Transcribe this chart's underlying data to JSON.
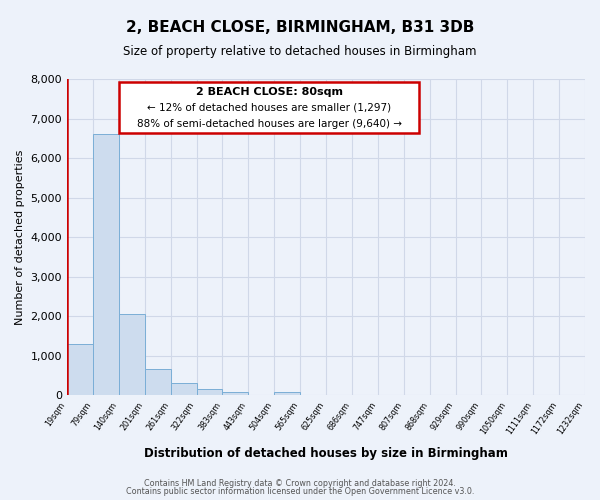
{
  "title": "2, BEACH CLOSE, BIRMINGHAM, B31 3DB",
  "subtitle": "Size of property relative to detached houses in Birmingham",
  "bar_values": [
    1300,
    6600,
    2050,
    650,
    300,
    150,
    80,
    0,
    80,
    0,
    0,
    0,
    0,
    0,
    0,
    0,
    0,
    0,
    0,
    0
  ],
  "bar_labels": [
    "19sqm",
    "79sqm",
    "140sqm",
    "201sqm",
    "261sqm",
    "322sqm",
    "383sqm",
    "443sqm",
    "504sqm",
    "565sqm",
    "625sqm",
    "686sqm",
    "747sqm",
    "807sqm",
    "868sqm",
    "929sqm",
    "990sqm",
    "1050sqm",
    "1111sqm",
    "1172sqm",
    "1232sqm"
  ],
  "bar_color": "#cddcee",
  "bar_edge_color": "#7aaed6",
  "highlight_line_color": "#cc0000",
  "ylabel": "Number of detached properties",
  "xlabel": "Distribution of detached houses by size in Birmingham",
  "ylim": [
    0,
    8000
  ],
  "yticks": [
    0,
    1000,
    2000,
    3000,
    4000,
    5000,
    6000,
    7000,
    8000
  ],
  "annotation_title": "2 BEACH CLOSE: 80sqm",
  "annotation_line1": "← 12% of detached houses are smaller (1,297)",
  "annotation_line2": "88% of semi-detached houses are larger (9,640) →",
  "annotation_box_color": "#cc0000",
  "footer_line1": "Contains HM Land Registry data © Crown copyright and database right 2024.",
  "footer_line2": "Contains public sector information licensed under the Open Government Licence v3.0.",
  "bg_color": "#edf2fa",
  "grid_color": "#d0d8e8"
}
